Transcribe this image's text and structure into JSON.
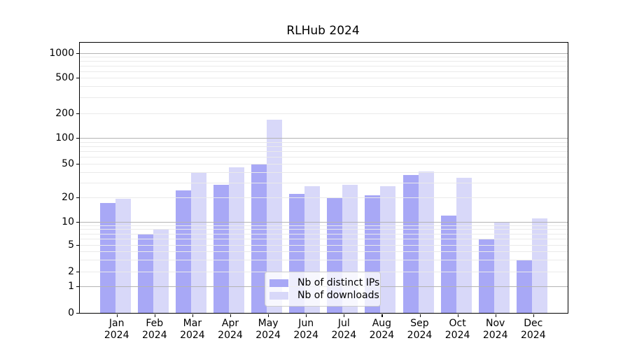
{
  "chart_data": {
    "type": "bar",
    "title": "RLHub 2024",
    "categories": [
      "Jan",
      "Feb",
      "Mar",
      "Apr",
      "May",
      "Jun",
      "Jul",
      "Aug",
      "Sep",
      "Oct",
      "Nov",
      "Dec"
    ],
    "category_year": "2024",
    "series": [
      {
        "name": "Nb of distinct IPs",
        "color": "#a8a8f6",
        "values": [
          17,
          7,
          24,
          28,
          50,
          22,
          20,
          21,
          37,
          12,
          6,
          3
        ]
      },
      {
        "name": "Nb of downloads",
        "color": "#d8d8f9",
        "values": [
          19,
          8,
          39,
          46,
          167,
          27,
          28,
          27,
          41,
          34,
          10,
          11
        ]
      }
    ],
    "yscale": "symlog",
    "y_ticks": [
      0,
      1,
      2,
      5,
      10,
      20,
      50,
      100,
      200,
      500,
      1000
    ],
    "ylim": [
      0,
      1350
    ],
    "xlabel": "",
    "ylabel": "",
    "grid": "both-horizontal",
    "legend_position": "lower center"
  },
  "colors": {
    "bar_distinct_ips": "#a8a8f6",
    "bar_downloads": "#d8d8f9",
    "major_grid": "#b4b4b4",
    "minor_grid": "#eaeaea",
    "axis": "#000000",
    "legend_border": "#cccccc",
    "background": "#ffffff"
  }
}
